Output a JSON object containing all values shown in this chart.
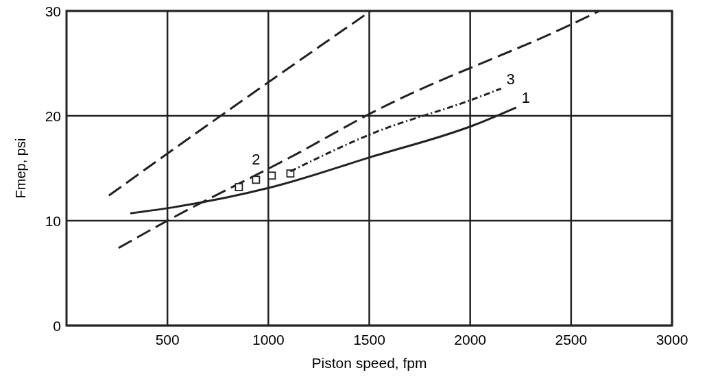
{
  "chart_data": {
    "type": "line",
    "xlabel": "Piston speed, fpm",
    "ylabel": "Fmep, psi",
    "xlim": [
      0,
      3000
    ],
    "xticks": [
      500,
      1000,
      1500,
      2000,
      2500,
      3000
    ],
    "ylim": [
      0,
      30
    ],
    "yticks": [
      0,
      10,
      20,
      30
    ],
    "grid": true,
    "series": [
      {
        "color": "#222222",
        "line_style": "dashed",
        "marker": "none",
        "x": [
          210,
          500,
          1000,
          1507
        ],
        "values": [
          12.4,
          16.4,
          23.2,
          30
        ]
      },
      {
        "color": "#222222",
        "line_style": "dashed",
        "marker": "none",
        "x": [
          258,
          500,
          1143,
          1513,
          2510,
          2640
        ],
        "values": [
          7.4,
          10,
          16.4,
          20.3,
          28.8,
          30
        ]
      },
      {
        "name": "1",
        "color": "#222222",
        "line_style": "solid",
        "marker": "none",
        "x": [
          316,
          503,
          1017,
          1513,
          2017,
          2228
        ],
        "values": [
          10.7,
          11.2,
          13.2,
          16.1,
          19.1,
          20.8
        ]
      },
      {
        "name": "2",
        "type": "scatter",
        "color": "#222222",
        "marker": "square",
        "x": [
          854,
          939,
          1017,
          1109
        ],
        "values": [
          13.2,
          13.9,
          14.3,
          14.5
        ]
      },
      {
        "name": "3",
        "color": "#222222",
        "line_style": "dotted",
        "marker": "none",
        "x": [
          1109,
          1513,
          2017,
          2153
        ],
        "values": [
          14.7,
          18.3,
          21.6,
          22.6
        ]
      }
    ]
  }
}
